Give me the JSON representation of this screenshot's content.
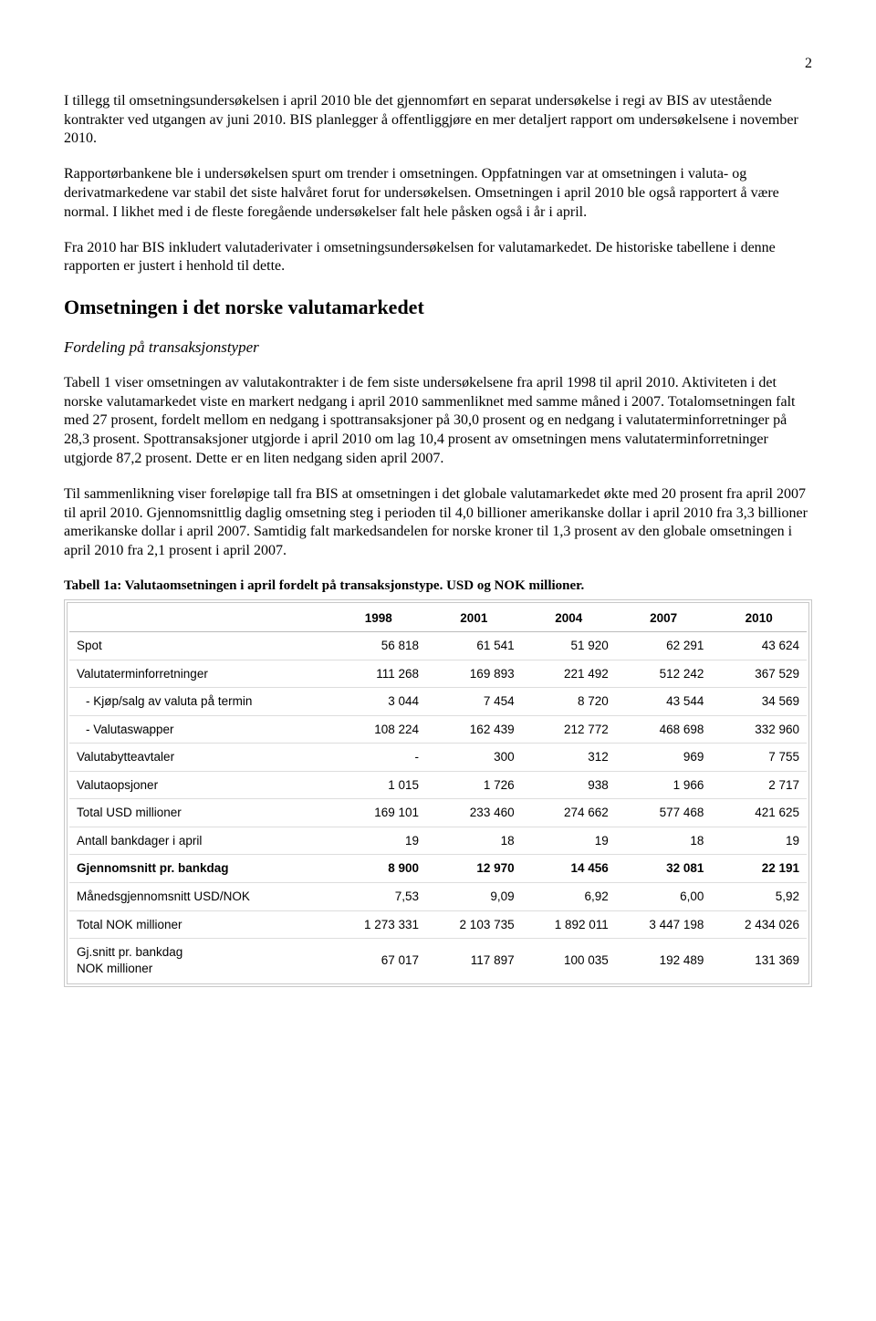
{
  "page_number": "2",
  "paragraphs": {
    "p1": "I tillegg til omsetningsundersøkelsen i april 2010 ble det gjennomført en separat undersøkelse i regi av BIS av utestående kontrakter ved utgangen av juni 2010. BIS planlegger å offentliggjøre en mer detaljert rapport om undersøkelsene i november 2010.",
    "p2": "Rapportørbankene ble i undersøkelsen spurt om trender i omsetningen. Oppfatningen var at omsetningen i valuta- og derivatmarkedene var stabil det siste halvåret forut for undersøkelsen. Omsetningen i april 2010 ble også rapportert å være normal. I likhet med i de fleste foregående undersøkelser falt hele påsken også i år i april.",
    "p3": "Fra 2010 har BIS inkludert valutaderivater i omsetningsundersøkelsen for valutamarkedet. De historiske tabellene i denne rapporten er justert i henhold til dette.",
    "p4": "Tabell 1 viser omsetningen av valutakontrakter i de fem siste undersøkelsene fra april 1998 til april 2010. Aktiviteten i det norske valutamarkedet viste en markert nedgang i april 2010 sammenliknet med samme måned i 2007. Totalomsetningen falt med 27 prosent, fordelt mellom en nedgang i spottransaksjoner på 30,0 prosent og en nedgang i valutaterminforretninger på 28,3 prosent. Spottransaksjoner utgjorde i april 2010 om lag 10,4 prosent av omsetningen mens valutaterminforretninger utgjorde 87,2 prosent. Dette er en liten nedgang siden april 2007.",
    "p5": "Til sammenlikning viser foreløpige tall fra BIS at omsetningen i det globale valutamarkedet økte med 20 prosent fra april 2007 til april 2010. Gjennomsnittlig daglig omsetning steg i perioden til 4,0 billioner amerikanske dollar i april 2010 fra 3,3 billioner amerikanske dollar i april 2007. Samtidig falt markedsandelen for norske kroner til 1,3 prosent av den globale omsetningen i april 2010 fra 2,1 prosent i april 2007."
  },
  "heading": "Omsetningen i det norske valutamarkedet",
  "subheading": "Fordeling på transaksjonstyper",
  "table": {
    "caption": "Tabell 1a: Valutaomsetningen i april fordelt på transaksjonstype. USD og NOK millioner.",
    "columns": [
      "",
      "1998",
      "2001",
      "2004",
      "2007",
      "2010"
    ],
    "rows": [
      {
        "label": "Spot",
        "values": [
          "56 818",
          "61 541",
          "51 920",
          "62 291",
          "43 624"
        ],
        "indent": false,
        "bold": false
      },
      {
        "label": "Valutaterminforretninger",
        "values": [
          "111 268",
          "169 893",
          "221 492",
          "512 242",
          "367 529"
        ],
        "indent": false,
        "bold": false
      },
      {
        "label": "- Kjøp/salg av valuta på termin",
        "values": [
          "3 044",
          "7 454",
          "8 720",
          "43 544",
          "34 569"
        ],
        "indent": true,
        "bold": false
      },
      {
        "label": "- Valutaswapper",
        "values": [
          "108 224",
          "162 439",
          "212 772",
          "468 698",
          "332 960"
        ],
        "indent": true,
        "bold": false
      },
      {
        "label": "Valutabytteavtaler",
        "values": [
          "-",
          "300",
          "312",
          "969",
          "7 755"
        ],
        "indent": false,
        "bold": false
      },
      {
        "label": "Valutaopsjoner",
        "values": [
          "1 015",
          "1 726",
          "938",
          "1 966",
          "2 717"
        ],
        "indent": false,
        "bold": false
      },
      {
        "label": "Total USD millioner",
        "values": [
          "169 101",
          "233 460",
          "274 662",
          "577 468",
          "421 625"
        ],
        "indent": false,
        "bold": false
      },
      {
        "label": "Antall bankdager i april",
        "values": [
          "19",
          "18",
          "19",
          "18",
          "19"
        ],
        "indent": false,
        "bold": false
      },
      {
        "label": "Gjennomsnitt pr. bankdag",
        "values": [
          "8 900",
          "12 970",
          "14 456",
          "32 081",
          "22 191"
        ],
        "indent": false,
        "bold": true
      },
      {
        "label": "Månedsgjennomsnitt USD/NOK",
        "values": [
          "7,53",
          "9,09",
          "6,92",
          "6,00",
          "5,92"
        ],
        "indent": false,
        "bold": false
      },
      {
        "label": "Total NOK millioner",
        "values": [
          "1 273 331",
          "2 103 735",
          "1 892 011",
          "3 447 198",
          "2 434 026"
        ],
        "indent": false,
        "bold": false
      },
      {
        "label": "Gj.snitt pr. bankdag\nNOK millioner",
        "values": [
          "67 017",
          "117 897",
          "100 035",
          "192 489",
          "131 369"
        ],
        "indent": false,
        "bold": false
      }
    ]
  },
  "colors": {
    "text": "#000000",
    "background": "#ffffff",
    "table_border": "#c8c8c8",
    "row_border": "#dddddd"
  }
}
